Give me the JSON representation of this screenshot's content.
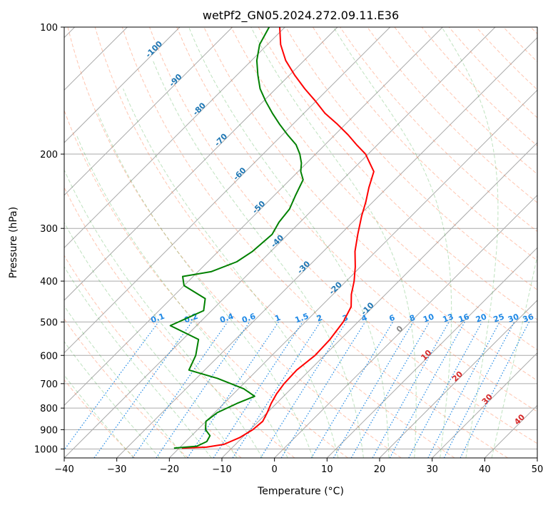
{
  "chart_data": {
    "type": "line",
    "title": "wetPf2_GN05.2024.272.09.11.E36",
    "xlabel": "Temperature (°C)",
    "ylabel": "Pressure (hPa)",
    "xlim": [
      -40,
      50
    ],
    "ylim": [
      1050,
      100
    ],
    "y_scale": "log",
    "x_ticks": [
      -40,
      -30,
      -20,
      -10,
      0,
      10,
      20,
      30,
      40,
      50
    ],
    "y_ticks": [
      100,
      200,
      300,
      400,
      500,
      600,
      700,
      800,
      900,
      1000
    ],
    "grid": true,
    "isotherm_skew": true,
    "series": [
      {
        "color": "#ff0000",
        "points": [
          [
            -19.5,
            995
          ],
          [
            -15,
            990
          ],
          [
            -12.2,
            975
          ],
          [
            -10.5,
            940
          ],
          [
            -9.5,
            900
          ],
          [
            -9.2,
            860
          ],
          [
            -10,
            820
          ],
          [
            -11,
            780
          ],
          [
            -11.8,
            740
          ],
          [
            -12.3,
            700
          ],
          [
            -12.5,
            650
          ],
          [
            -11.8,
            600
          ],
          [
            -12,
            550
          ],
          [
            -12.8,
            500
          ],
          [
            -14.2,
            460
          ],
          [
            -16.5,
            430
          ],
          [
            -18.5,
            400
          ],
          [
            -21,
            370
          ],
          [
            -24,
            340
          ],
          [
            -26.7,
            310
          ],
          [
            -29.5,
            280
          ],
          [
            -31.3,
            260
          ],
          [
            -33.5,
            240
          ],
          [
            -35.6,
            220
          ],
          [
            -38,
            210
          ],
          [
            -40.5,
            200
          ],
          [
            -44,
            190
          ],
          [
            -47.5,
            180
          ],
          [
            -51.5,
            170
          ],
          [
            -56,
            160
          ],
          [
            -60,
            150
          ],
          [
            -64.5,
            140
          ],
          [
            -69,
            130
          ],
          [
            -73.5,
            120
          ],
          [
            -77.5,
            110
          ],
          [
            -81,
            100
          ]
        ]
      },
      {
        "color": "#008000",
        "points": [
          [
            -21,
            995
          ],
          [
            -17,
            985
          ],
          [
            -16,
            960
          ],
          [
            -16.5,
            930
          ],
          [
            -18.5,
            900
          ],
          [
            -20,
            860
          ],
          [
            -19.5,
            820
          ],
          [
            -17.5,
            780
          ],
          [
            -15.5,
            750
          ],
          [
            -19,
            720
          ],
          [
            -26,
            680
          ],
          [
            -33,
            650
          ],
          [
            -34.5,
            600
          ],
          [
            -37,
            550
          ],
          [
            -45,
            510
          ],
          [
            -41.5,
            470
          ],
          [
            -43.5,
            440
          ],
          [
            -50,
            410
          ],
          [
            -52,
            390
          ],
          [
            -47.5,
            380
          ],
          [
            -44.5,
            360
          ],
          [
            -43.5,
            340
          ],
          [
            -43,
            310
          ],
          [
            -44,
            290
          ],
          [
            -44.5,
            270
          ],
          [
            -46,
            250
          ],
          [
            -47.5,
            230
          ],
          [
            -49.5,
            220
          ],
          [
            -51,
            210
          ],
          [
            -53,
            200
          ],
          [
            -55.5,
            190
          ],
          [
            -59,
            180
          ],
          [
            -62.5,
            170
          ],
          [
            -66,
            160
          ],
          [
            -69.5,
            150
          ],
          [
            -73,
            140
          ],
          [
            -76,
            130
          ],
          [
            -79,
            120
          ],
          [
            -81.5,
            110
          ],
          [
            -83,
            100
          ]
        ]
      }
    ],
    "isotherm_labels": [
      "-100",
      "-90",
      "-80",
      "-70",
      "-60",
      "-50",
      "-40",
      "-30",
      "-20",
      "-10",
      "0",
      "10",
      "20",
      "30",
      "40"
    ],
    "mixing_ratio_labels": [
      "0.1",
      "0.2",
      "0.4",
      "0.6",
      "1",
      "1.5",
      "2",
      "3",
      "4",
      "6",
      "8",
      "10",
      "13",
      "16",
      "20",
      "25",
      "30",
      "36"
    ]
  }
}
